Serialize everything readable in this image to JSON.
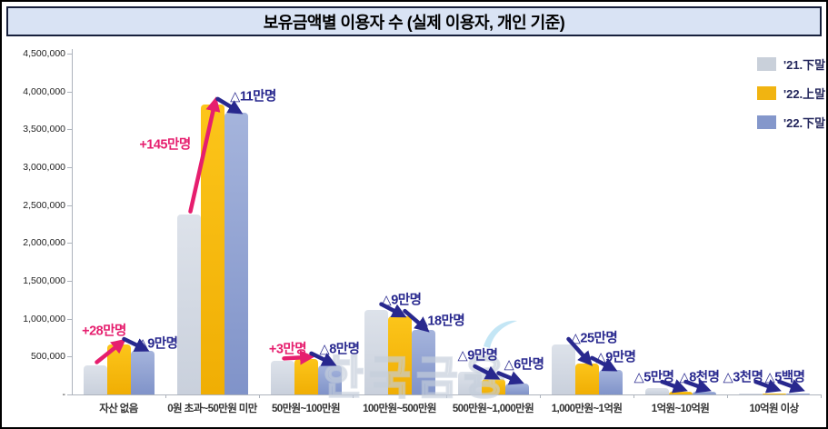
{
  "title": "보유금액별 이용자 수 (실제 이용자, 개인 기준)",
  "watermark": "한국금융",
  "legend": {
    "items": [
      {
        "label": "'21.下말",
        "color": "#c9d0da"
      },
      {
        "label": "'22.上말",
        "color": "#f1b411"
      },
      {
        "label": "'22.下말",
        "color": "#8497cb"
      }
    ]
  },
  "chart_data": {
    "type": "bar",
    "title": "보유금액별 이용자 수 (실제 이용자, 개인 기준)",
    "categories": [
      "자산 없음",
      "0원 초과~50만원 미만",
      "50만원~100만원",
      "100만원~500만원",
      "500만원~1,000만원",
      "1,000만원~1억원",
      "1억원~10억원",
      "10억원 이상"
    ],
    "series": [
      {
        "name": "'21.下말",
        "color_start": "#dde2ea",
        "color_end": "#c9d0dc",
        "values": [
          390000,
          2380000,
          440000,
          1120000,
          300000,
          660000,
          90000,
          4000
        ]
      },
      {
        "name": "'22.上말",
        "color_start": "#fcc51a",
        "color_end": "#f0ae04",
        "values": [
          660000,
          3830000,
          470000,
          1030000,
          210000,
          410000,
          40000,
          1000
        ]
      },
      {
        "name": "'22.下말",
        "color_start": "#a5b4dc",
        "color_end": "#8093c9",
        "values": [
          580000,
          3720000,
          390000,
          850000,
          150000,
          320000,
          32000,
          500
        ]
      }
    ],
    "ylim": [
      0,
      4500000
    ],
    "ytick_labels": [
      "4,500,000",
      "4,000,000",
      "3,500,000",
      "3,000,000",
      "2,500,000",
      "2,000,000",
      "1,500,000",
      "1,000,000",
      "500,000",
      "-"
    ],
    "grid": false,
    "legend_position": "top-right",
    "annotations": [
      {
        "category_index": 0,
        "from": "'21.下말",
        "to": "'22.上말",
        "text": "+28만명",
        "color": "#e61e6e"
      },
      {
        "category_index": 0,
        "from": "'22.上말",
        "to": "'22.下말",
        "text": "△9만명",
        "color": "#28288e"
      },
      {
        "category_index": 1,
        "from": "'21.下말",
        "to": "'22.上말",
        "text": "+145만명",
        "color": "#e61e6e"
      },
      {
        "category_index": 1,
        "from": "'22.上말",
        "to": "'22.下말",
        "text": "△11만명",
        "color": "#28288e"
      },
      {
        "category_index": 2,
        "from": "'21.下말",
        "to": "'22.上말",
        "text": "+3만명",
        "color": "#e61e6e"
      },
      {
        "category_index": 2,
        "from": "'22.上말",
        "to": "'22.下말",
        "text": "△8만명",
        "color": "#28288e"
      },
      {
        "category_index": 3,
        "from": "'21.下말",
        "to": "'22.上말",
        "text": "△9만명",
        "color": "#28288e"
      },
      {
        "category_index": 3,
        "from": "'22.上말",
        "to": "'22.下말",
        "text": "△18만명",
        "color": "#28288e"
      },
      {
        "category_index": 4,
        "from": "'21.下말",
        "to": "'22.上말",
        "text": "△9만명",
        "color": "#28288e"
      },
      {
        "category_index": 4,
        "from": "'22.上말",
        "to": "'22.下말",
        "text": "△6만명",
        "color": "#28288e"
      },
      {
        "category_index": 5,
        "from": "'21.下말",
        "to": "'22.上말",
        "text": "△25만명",
        "color": "#28288e"
      },
      {
        "category_index": 5,
        "from": "'22.上말",
        "to": "'22.下말",
        "text": "△9만명",
        "color": "#28288e"
      },
      {
        "category_index": 6,
        "from": "'21.下말",
        "to": "'22.上말",
        "text": "△5만명",
        "color": "#28288e"
      },
      {
        "category_index": 6,
        "from": "'22.上말",
        "to": "'22.下말",
        "text": "△8천명",
        "color": "#28288e"
      },
      {
        "category_index": 7,
        "from": "'21.下말",
        "to": "'22.上말",
        "text": "△3천명",
        "color": "#28288e"
      },
      {
        "category_index": 7,
        "from": "'22.上말",
        "to": "'22.下말",
        "text": "△5백명",
        "color": "#28288e"
      }
    ]
  }
}
